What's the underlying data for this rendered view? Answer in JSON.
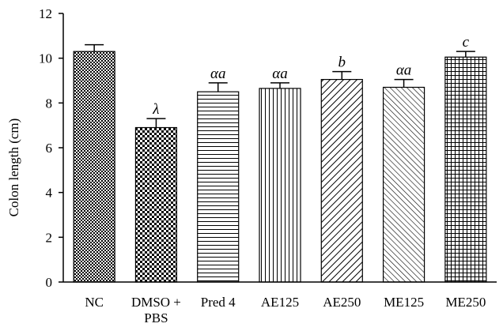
{
  "chart_data": {
    "type": "bar",
    "title": "",
    "xlabel": "",
    "ylabel": "Colon length (cm)",
    "ylim": [
      0,
      12
    ],
    "yticks": [
      0,
      2,
      4,
      6,
      8,
      10,
      12
    ],
    "grid": false,
    "categories": [
      [
        "NC"
      ],
      [
        "DMSO +",
        "PBS"
      ],
      [
        "Pred 4"
      ],
      [
        "AE125"
      ],
      [
        "AE250"
      ],
      [
        "ME125"
      ],
      [
        "ME250"
      ]
    ],
    "series": [
      {
        "values": [
          10.3,
          6.9,
          8.5,
          8.65,
          9.05,
          8.7,
          10.05
        ],
        "errors": [
          0.3,
          0.4,
          0.4,
          0.25,
          0.35,
          0.35,
          0.25
        ]
      }
    ],
    "annotations": [
      "",
      "λ",
      "αa",
      "αa",
      "b",
      "αa",
      "c"
    ],
    "patterns": [
      "checker-small",
      "checker-large",
      "horizontal",
      "vertical",
      "diag-up",
      "diag-down",
      "grid"
    ]
  }
}
